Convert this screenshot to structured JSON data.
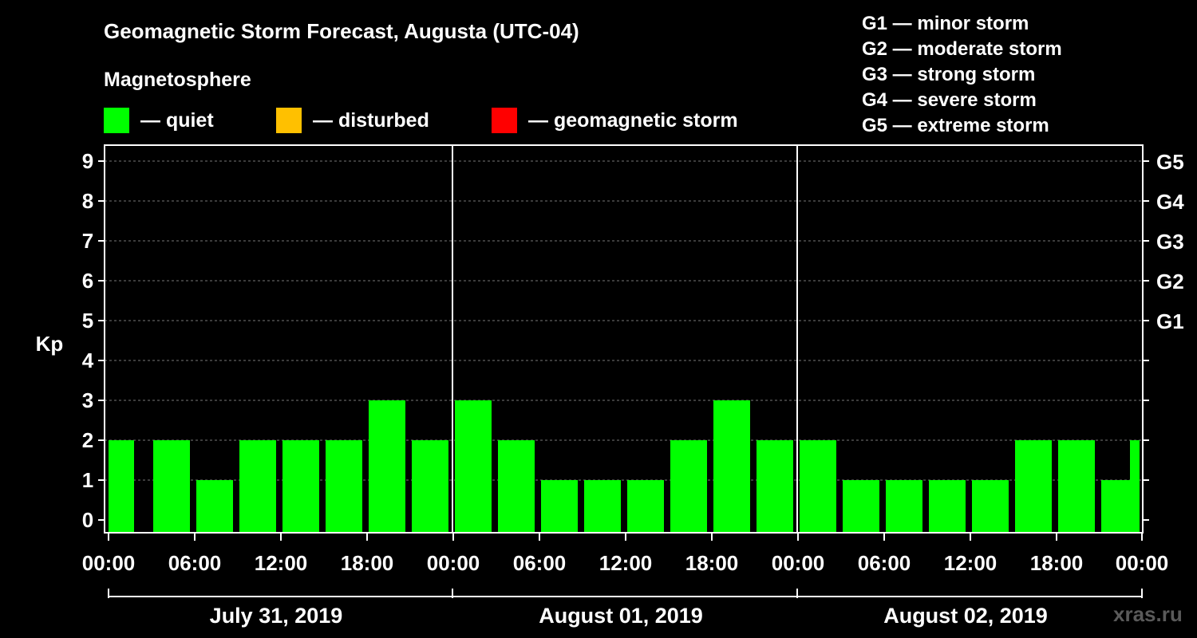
{
  "title": "Geomagnetic Storm Forecast, Augusta (UTC-04)",
  "subtitle": "Magnetosphere",
  "legend": [
    {
      "label": "— quiet",
      "color": "#00ff00"
    },
    {
      "label": "— disturbed",
      "color": "#ffc000"
    },
    {
      "label": "— geomagnetic storm",
      "color": "#ff0000"
    }
  ],
  "storm_scale": [
    "G1 — minor storm",
    "G2 — moderate storm",
    "G3 — strong storm",
    "G4 — severe storm",
    "G5 — extreme storm"
  ],
  "watermark": "xras.ru",
  "chart_data": {
    "type": "bar",
    "ylabel": "Kp",
    "ylim": [
      0,
      9
    ],
    "yticks": [
      0,
      1,
      2,
      3,
      4,
      5,
      6,
      7,
      8,
      9
    ],
    "right_axis_labels": [
      {
        "kp": 5,
        "label": "G1"
      },
      {
        "kp": 6,
        "label": "G2"
      },
      {
        "kp": 7,
        "label": "G3"
      },
      {
        "kp": 8,
        "label": "G4"
      },
      {
        "kp": 9,
        "label": "G5"
      }
    ],
    "grid": true,
    "bar_color": "#00ff00",
    "xtick_labels": [
      "00:00",
      "06:00",
      "12:00",
      "18:00",
      "00:00",
      "06:00",
      "12:00",
      "18:00",
      "00:00",
      "06:00",
      "12:00",
      "18:00",
      "00:00"
    ],
    "days": [
      "July 31, 2019",
      "August 01, 2019",
      "August 02, 2019"
    ],
    "x": [
      "00:00-03:00",
      "03:00-06:00",
      "06:00-09:00",
      "09:00-12:00",
      "12:00-15:00",
      "15:00-18:00",
      "18:00-21:00",
      "21:00-24:00",
      "00:00-03:00",
      "03:00-06:00",
      "06:00-09:00",
      "09:00-12:00",
      "12:00-15:00",
      "15:00-18:00",
      "18:00-21:00",
      "21:00-24:00",
      "00:00-03:00",
      "03:00-06:00",
      "06:00-09:00",
      "09:00-12:00",
      "12:00-15:00",
      "15:00-18:00",
      "18:00-21:00",
      "21:00-24:00"
    ],
    "values": [
      2,
      2,
      1,
      2,
      2,
      2,
      3,
      2,
      3,
      2,
      1,
      1,
      1,
      2,
      3,
      2,
      2,
      1,
      1,
      1,
      1,
      2,
      2,
      1
    ]
  }
}
